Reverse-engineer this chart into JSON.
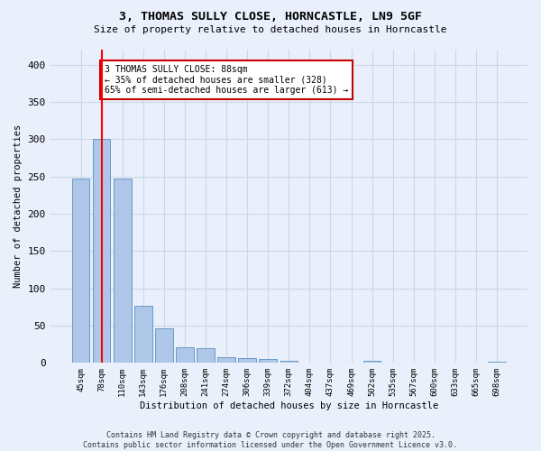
{
  "title1": "3, THOMAS SULLY CLOSE, HORNCASTLE, LN9 5GF",
  "title2": "Size of property relative to detached houses in Horncastle",
  "xlabel": "Distribution of detached houses by size in Horncastle",
  "ylabel": "Number of detached properties",
  "bar_labels": [
    "45sqm",
    "78sqm",
    "110sqm",
    "143sqm",
    "176sqm",
    "208sqm",
    "241sqm",
    "274sqm",
    "306sqm",
    "339sqm",
    "372sqm",
    "404sqm",
    "437sqm",
    "469sqm",
    "502sqm",
    "535sqm",
    "567sqm",
    "600sqm",
    "633sqm",
    "665sqm",
    "698sqm"
  ],
  "bar_values": [
    247,
    300,
    247,
    77,
    46,
    21,
    20,
    8,
    7,
    5,
    3,
    0,
    0,
    0,
    3,
    0,
    0,
    0,
    0,
    0,
    2
  ],
  "bar_color": "#aec6e8",
  "bar_edge_color": "#5a8fc2",
  "grid_color": "#c8d8e8",
  "bg_color": "#eaf0fb",
  "red_line_x": 1,
  "annotation_text": "3 THOMAS SULLY CLOSE: 88sqm\n← 35% of detached houses are smaller (328)\n65% of semi-detached houses are larger (613) →",
  "annotation_box_facecolor": "#ffffff",
  "annotation_box_edge": "#cc0000",
  "footnote1": "Contains HM Land Registry data © Crown copyright and database right 2025.",
  "footnote2": "Contains public sector information licensed under the Open Government Licence v3.0.",
  "ylim": [
    0,
    420
  ],
  "yticks": [
    0,
    50,
    100,
    150,
    200,
    250,
    300,
    350,
    400
  ]
}
